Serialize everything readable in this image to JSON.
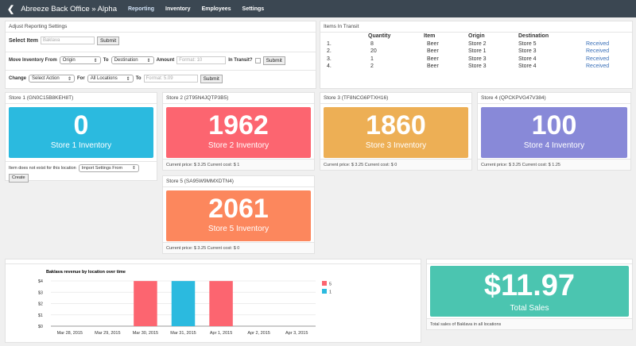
{
  "nav": {
    "back_icon": "chevron-left-icon",
    "title": "Abreeze Back Office » Alpha",
    "links": [
      "Reporting",
      "Inventory",
      "Employees",
      "Settings"
    ]
  },
  "settings": {
    "title": "Adjust Reporting Settings",
    "select_item_label": "Select Item",
    "select_item_placeholder": "Baklava",
    "submit": "Submit",
    "move_label": "Move Inventory From",
    "origin": "Origin",
    "to": "To",
    "destination": "Destination",
    "amount": "Amount",
    "amount_placeholder": "Format: 10",
    "in_transit": "In Transit?",
    "change_label": "Change",
    "select_action": "Select Action",
    "for": "For",
    "all_locations": "All Locations",
    "price_placeholder": "Format: 5.09"
  },
  "transit": {
    "title": "Items In Transit",
    "headers": [
      "",
      "Quantity",
      "Item",
      "Origin",
      "Destination",
      ""
    ],
    "rows": [
      [
        "1.",
        "8",
        "Beer",
        "Store 2",
        "Store 5",
        "Received"
      ],
      [
        "2.",
        "20",
        "Beer",
        "Store 1",
        "Store 3",
        "Received"
      ],
      [
        "3.",
        "1",
        "Beer",
        "Store 3",
        "Store 4",
        "Received"
      ],
      [
        "4.",
        "2",
        "Beer",
        "Store 3",
        "Store 4",
        "Received"
      ]
    ]
  },
  "stores": [
    {
      "title": "Store 1 (GN0C15B8KEH8T)",
      "value": "0",
      "label": "Store 1 Inventory",
      "color": "#2bbadf",
      "missing": "Item does not exist for this location",
      "import": "Import Settings From",
      "create": "Create"
    },
    {
      "title": "Store 2 (2T95N4JQTP3B5)",
      "value": "1962",
      "label": "Store 2 Inventory",
      "color": "#fc6570",
      "footer": "Current price: $ 3.25 Current cost: $ 1"
    },
    {
      "title": "Store 3 (TF8NCG6PTXH16)",
      "value": "1860",
      "label": "Store 3 Inventory",
      "color": "#edaf55",
      "footer": "Current price: $ 3.25 Current cost: $ 0"
    },
    {
      "title": "Store 4 (QPCKPVG47V384)",
      "value": "100",
      "label": "Store 4 Inventory",
      "color": "#8889d8",
      "footer": "Current price: $ 3.25 Current cost: $ 1.25"
    },
    {
      "title": "Store 5 (SA95W9MMXDTN4)",
      "value": "2061",
      "label": "Store 5 Inventory",
      "color": "#fc875d",
      "footer": "Current price: $ 3.25 Current cost: $ 0"
    }
  ],
  "total": {
    "value": "$11.97",
    "label": "Total Sales",
    "color": "#4bc5b0",
    "footer": "Total sales of Baklava in all locations"
  },
  "chart_data": {
    "type": "bar",
    "title": "Baklava revenue by location over time",
    "categories": [
      "Mar 28, 2015",
      "Mar 29, 2015",
      "Mar 30, 2015",
      "Mar 31, 2015",
      "Apr 1, 2015",
      "Apr 2, 2015",
      "Apr 3, 2015"
    ],
    "series": [
      {
        "name": "5",
        "color": "#fc6570",
        "values": [
          0,
          0,
          3.99,
          0,
          3.99,
          0,
          0
        ]
      },
      {
        "name": "1",
        "color": "#2bbadf",
        "values": [
          0,
          0,
          0,
          3.99,
          0,
          0,
          0
        ]
      }
    ],
    "yticks": [
      "$0",
      "$1",
      "$2",
      "$3",
      "$4"
    ],
    "ylim": [
      0,
      4
    ],
    "grid": true,
    "legend": "right"
  }
}
